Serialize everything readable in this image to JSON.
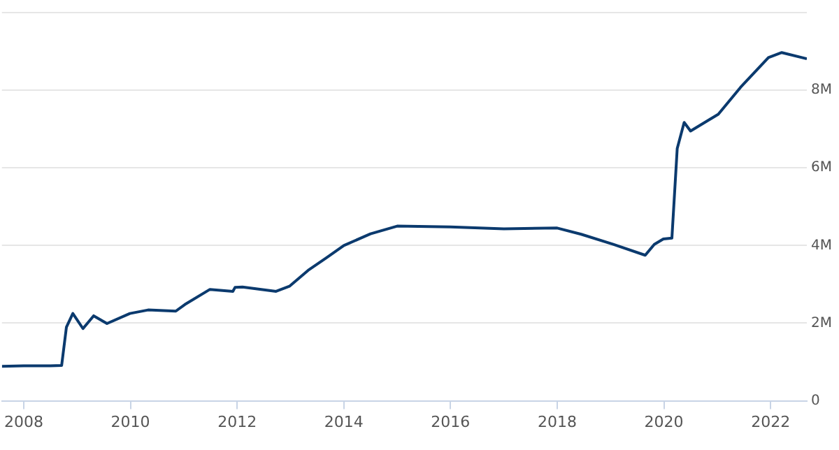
{
  "chart_data": {
    "type": "line",
    "x": [
      2007.59,
      2008.0,
      2008.5,
      2008.71,
      2008.8,
      2008.92,
      2009.11,
      2009.31,
      2009.56,
      2009.99,
      2010.33,
      2010.85,
      2011.02,
      2011.49,
      2011.92,
      2011.96,
      2012.1,
      2012.73,
      2012.98,
      2013.33,
      2013.67,
      2014.0,
      2014.5,
      2015.0,
      2016.0,
      2017.0,
      2018.0,
      2018.45,
      2019.05,
      2019.65,
      2019.82,
      2019.99,
      2020.15,
      2020.25,
      2020.38,
      2020.5,
      2021.02,
      2021.44,
      2021.96,
      2022.21,
      2022.68
    ],
    "series": [
      {
        "color": "#0b3a6e",
        "values": [
          0.89,
          0.9,
          0.9,
          0.91,
          1.9,
          2.25,
          1.86,
          2.19,
          1.99,
          2.25,
          2.34,
          2.31,
          2.48,
          2.87,
          2.82,
          2.92,
          2.93,
          2.82,
          2.95,
          3.36,
          3.68,
          4.0,
          4.3,
          4.5,
          4.48,
          4.43,
          4.45,
          4.29,
          4.03,
          3.75,
          4.03,
          4.17,
          4.19,
          6.5,
          7.17,
          6.95,
          7.38,
          8.08,
          8.84,
          8.97,
          8.81
        ]
      }
    ],
    "xlim": [
      2007.59,
      2022.68
    ],
    "xticks": [
      2008,
      2010,
      2012,
      2014,
      2016,
      2018,
      2020,
      2022
    ],
    "ylim": [
      0,
      10
    ],
    "yticks": [
      0,
      {
        "value": 2,
        "label": "2M"
      },
      {
        "value": 4,
        "label": "4M"
      },
      {
        "value": 6,
        "label": "6M"
      },
      {
        "value": 8,
        "label": "8M"
      },
      {
        "value": 10,
        "label": null
      }
    ],
    "grid": "y",
    "legend": false,
    "marker": "none",
    "line_style": "solid"
  }
}
